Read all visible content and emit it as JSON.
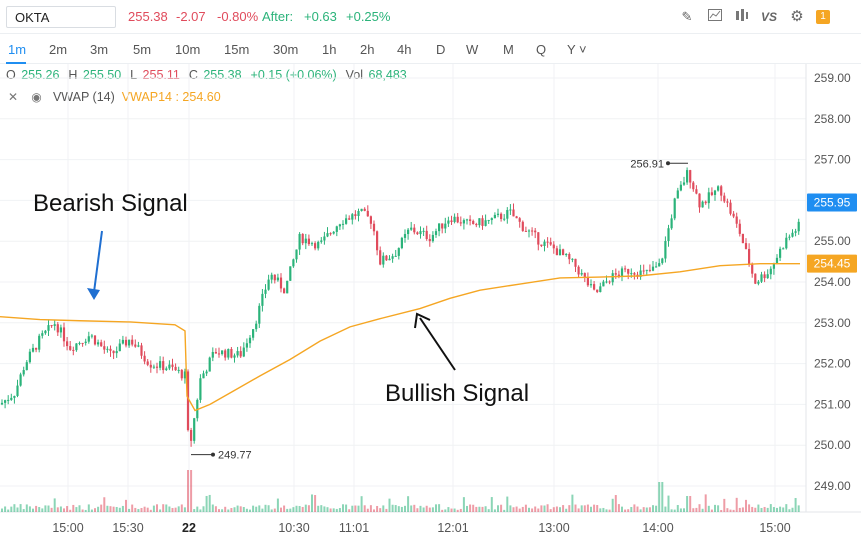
{
  "toolbar": {
    "symbol": "OKTA",
    "last": "255.38",
    "change": "-2.07",
    "change_pct": "-0.80%",
    "after_label": "After:",
    "after_change": "+0.63",
    "after_pct": "+0.25%",
    "tools": [
      "pencil-icon",
      "chart-type-icon",
      "indicators-icon",
      "compare-icon",
      "settings-icon"
    ],
    "compare_label": "VS",
    "badge": "1"
  },
  "intervals": [
    "1m",
    "2m",
    "3m",
    "5m",
    "10m",
    "15m",
    "30m",
    "1h",
    "2h",
    "4h",
    "D",
    "W",
    "M",
    "Q",
    "Y"
  ],
  "active_interval": "1m",
  "ohlc": {
    "o_label": "O",
    "o": "255.26",
    "h_label": "H",
    "h": "255.50",
    "l_label": "L",
    "l": "255.11",
    "c_label": "C",
    "c": "255.38",
    "chg": "+0.15 (+0.06%)",
    "vol_label": "Vol",
    "vol": "68,483"
  },
  "indicator": {
    "name": "VWAP (14)",
    "value_text": "VWAP14 : 254.60"
  },
  "colors": {
    "up": "#2bb37a",
    "down": "#e04b5c",
    "vwap": "#f5a623",
    "accent": "#1f8ef1"
  },
  "chart_data": {
    "type": "candlestick",
    "y_axis_ticks": [
      "259.00",
      "258.00",
      "257.00",
      "256.00",
      "255.00",
      "254.00",
      "253.00",
      "252.00",
      "251.00",
      "250.00",
      "249.00"
    ],
    "x_axis_ticks": [
      "15:00",
      "15:30",
      "22",
      "10:30",
      "11:01",
      "12:01",
      "13:00",
      "14:00",
      "15:00"
    ],
    "ylim": [
      248.6,
      259.3
    ],
    "price_label": "255.95",
    "vwap_label": "254.45",
    "high_marker": "256.91",
    "low_marker": "249.77",
    "vwap_series": [
      [
        0,
        253.15
      ],
      [
        40,
        253.08
      ],
      [
        80,
        253.05
      ],
      [
        130,
        253.02
      ],
      [
        175,
        252.95
      ],
      [
        185,
        252.8
      ],
      [
        187,
        251.2
      ],
      [
        195,
        250.85
      ],
      [
        210,
        251.0
      ],
      [
        235,
        251.35
      ],
      [
        260,
        251.7
      ],
      [
        290,
        252.1
      ],
      [
        320,
        252.55
      ],
      [
        350,
        252.9
      ],
      [
        380,
        253.1
      ],
      [
        420,
        253.35
      ],
      [
        450,
        253.6
      ],
      [
        480,
        253.8
      ],
      [
        520,
        253.95
      ],
      [
        560,
        254.1
      ],
      [
        600,
        254.12
      ],
      [
        640,
        254.15
      ],
      [
        680,
        254.25
      ],
      [
        720,
        254.4
      ],
      [
        760,
        254.45
      ],
      [
        800,
        254.45
      ]
    ],
    "price_path": [
      [
        0,
        251.0
      ],
      [
        15,
        251.3
      ],
      [
        25,
        252.0
      ],
      [
        40,
        252.6
      ],
      [
        55,
        253.0
      ],
      [
        70,
        252.4
      ],
      [
        90,
        252.7
      ],
      [
        110,
        252.2
      ],
      [
        130,
        252.6
      ],
      [
        150,
        252.0
      ],
      [
        170,
        251.9
      ],
      [
        185,
        251.7
      ],
      [
        189,
        249.8
      ],
      [
        200,
        251.6
      ],
      [
        215,
        252.3
      ],
      [
        240,
        252.2
      ],
      [
        255,
        253.0
      ],
      [
        270,
        254.2
      ],
      [
        285,
        253.8
      ],
      [
        300,
        255.1
      ],
      [
        320,
        254.9
      ],
      [
        340,
        255.5
      ],
      [
        360,
        255.7
      ],
      [
        372,
        255.5
      ],
      [
        380,
        254.5
      ],
      [
        395,
        254.7
      ],
      [
        410,
        255.3
      ],
      [
        430,
        255.1
      ],
      [
        450,
        255.6
      ],
      [
        470,
        255.4
      ],
      [
        490,
        255.5
      ],
      [
        510,
        255.7
      ],
      [
        525,
        255.3
      ],
      [
        540,
        255.0
      ],
      [
        555,
        254.8
      ],
      [
        575,
        254.4
      ],
      [
        595,
        253.7
      ],
      [
        610,
        254.1
      ],
      [
        630,
        254.3
      ],
      [
        645,
        254.2
      ],
      [
        660,
        254.4
      ],
      [
        675,
        256.0
      ],
      [
        688,
        256.7
      ],
      [
        700,
        255.9
      ],
      [
        720,
        256.3
      ],
      [
        740,
        255.2
      ],
      [
        755,
        254.0
      ],
      [
        770,
        254.3
      ],
      [
        785,
        255.0
      ],
      [
        800,
        255.4
      ]
    ]
  },
  "annotations": {
    "bearish": "Bearish Signal",
    "bullish": "Bullish Signal"
  }
}
